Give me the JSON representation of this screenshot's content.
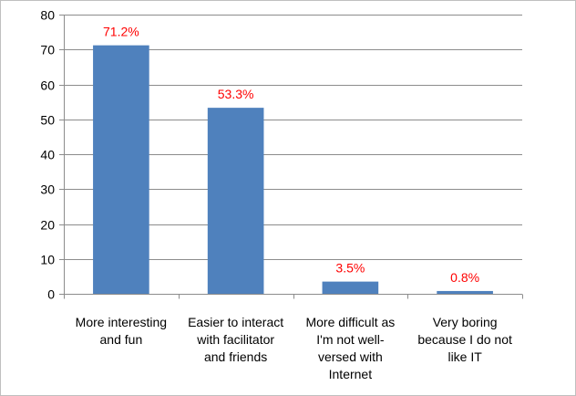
{
  "chart_data": {
    "type": "bar",
    "categories": [
      "More interesting and fun",
      "Easier to interact with facilitator and friends",
      "More difficult as I'm not well-versed with Internet",
      "Very boring because I do not like IT"
    ],
    "category_label_lines": [
      [
        "More interesting",
        "and fun"
      ],
      [
        "Easier to interact",
        "with facilitator",
        "and friends"
      ],
      [
        "More difficult as",
        "I'm not well-",
        "versed with",
        "Internet"
      ],
      [
        "Very boring",
        "because I do not",
        "like IT"
      ]
    ],
    "values": [
      71.2,
      53.3,
      3.5,
      0.8
    ],
    "data_labels": [
      "71.2%",
      "53.3%",
      "3.5%",
      "0.8%"
    ],
    "ylim": [
      0,
      80
    ],
    "yticks": [
      0,
      10,
      20,
      30,
      40,
      50,
      60,
      70,
      80
    ],
    "grid": true,
    "legend": "none",
    "colors": {
      "bar": "#4f81bd",
      "data_label": "#ff0000",
      "gridline": "#8c8c8c"
    }
  }
}
